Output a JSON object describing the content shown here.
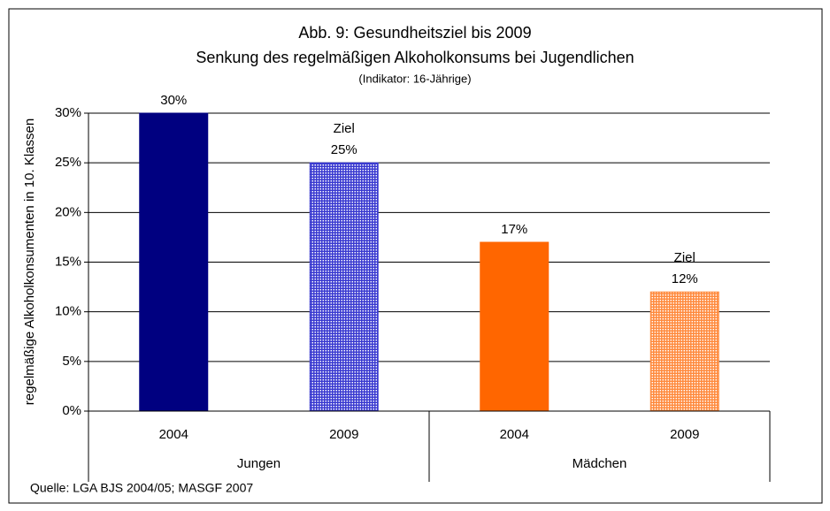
{
  "chart_data": {
    "type": "bar",
    "title": "Abb. 9: Gesundheitsziel bis 2009",
    "subtitle": "Senkung des regelmäßigen Alkoholkonsums bei Jugendlichen",
    "note": "(Indikator: 16-Jährige)",
    "y_label": "regelmäßige Alkoholkonsumenten in 10. Klassen",
    "source": "Quelle: LGA BJS 2004/05; MASGF 2007",
    "categories": [
      "2004",
      "2009",
      "2004",
      "2009"
    ],
    "groups": [
      "Jungen",
      "Mädchen"
    ],
    "values": [
      30,
      25,
      17,
      12
    ],
    "value_labels": [
      "30%",
      "25%",
      "17%",
      "12%"
    ],
    "annotations": [
      null,
      "Ziel",
      null,
      "Ziel"
    ],
    "colors": [
      "#000080",
      "#3a3ad0",
      "#ff6600",
      "#ff8a3d"
    ],
    "hatched": [
      false,
      true,
      false,
      true
    ],
    "ylim": [
      0,
      30
    ],
    "yticks": [
      {
        "value": 0,
        "label": "0%"
      },
      {
        "value": 5,
        "label": "5%"
      },
      {
        "value": 10,
        "label": "10%"
      },
      {
        "value": 15,
        "label": "15%"
      },
      {
        "value": 20,
        "label": "20%"
      },
      {
        "value": 25,
        "label": "25%"
      },
      {
        "value": 30,
        "label": "30%"
      }
    ],
    "grid": true
  }
}
